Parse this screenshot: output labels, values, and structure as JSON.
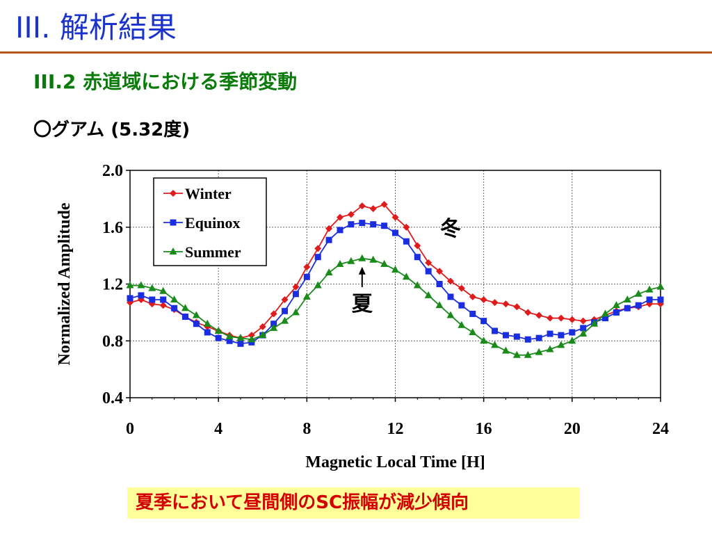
{
  "slide": {
    "title": "III. 解析結果",
    "subtitle": "III.2 赤道域における季節変動",
    "station": "〇グアム (5.32度)",
    "conclusion": "夏季において昼間側のSC振幅が減少傾向"
  },
  "chart_data": {
    "type": "line",
    "title": "",
    "xlabel": "Magnetic Local Time [H]",
    "ylabel": "Normalized Amplitude",
    "xlim": [
      0,
      24
    ],
    "ylim": [
      0.4,
      2.0
    ],
    "xticks": [
      "0",
      "4",
      "8",
      "12",
      "16",
      "20",
      "24"
    ],
    "yticks": [
      "0.4",
      "0.8",
      "1.2",
      "1.6",
      "2.0"
    ],
    "grid": true,
    "legend_position": "top-left",
    "x": [
      0,
      0.5,
      1,
      1.5,
      2,
      2.5,
      3,
      3.5,
      4,
      4.5,
      5,
      5.5,
      6,
      6.5,
      7,
      7.5,
      8,
      8.5,
      9,
      9.5,
      10,
      10.5,
      11,
      11.5,
      12,
      12.5,
      13,
      13.5,
      14,
      14.5,
      15,
      15.5,
      16,
      16.5,
      17,
      17.5,
      18,
      18.5,
      19,
      19.5,
      20,
      20.5,
      21,
      21.5,
      22,
      22.5,
      23,
      23.5,
      24
    ],
    "series": [
      {
        "name": "Winter",
        "color": "#e01b1b",
        "marker": "diamond",
        "values": [
          1.07,
          1.09,
          1.06,
          1.05,
          1.02,
          0.97,
          0.93,
          0.9,
          0.87,
          0.84,
          0.82,
          0.84,
          0.9,
          0.99,
          1.09,
          1.18,
          1.32,
          1.45,
          1.59,
          1.67,
          1.69,
          1.75,
          1.73,
          1.76,
          1.67,
          1.6,
          1.47,
          1.35,
          1.29,
          1.22,
          1.17,
          1.11,
          1.09,
          1.07,
          1.06,
          1.04,
          1.0,
          0.98,
          0.96,
          0.96,
          0.95,
          0.94,
          0.95,
          0.98,
          1.01,
          1.03,
          1.04,
          1.06,
          1.06
        ]
      },
      {
        "name": "Equinox",
        "color": "#1a2ee0",
        "marker": "square",
        "values": [
          1.1,
          1.12,
          1.09,
          1.09,
          1.03,
          0.97,
          0.92,
          0.86,
          0.82,
          0.8,
          0.78,
          0.79,
          0.84,
          0.92,
          1.01,
          1.13,
          1.25,
          1.39,
          1.51,
          1.58,
          1.62,
          1.63,
          1.62,
          1.61,
          1.56,
          1.5,
          1.39,
          1.29,
          1.2,
          1.11,
          1.05,
          0.99,
          0.94,
          0.87,
          0.84,
          0.83,
          0.81,
          0.82,
          0.85,
          0.84,
          0.86,
          0.89,
          0.93,
          0.96,
          1.0,
          1.03,
          1.05,
          1.09,
          1.09
        ]
      },
      {
        "name": "Summer",
        "color": "#1a8a1a",
        "marker": "triangle",
        "values": [
          1.19,
          1.19,
          1.17,
          1.15,
          1.09,
          1.03,
          0.98,
          0.92,
          0.87,
          0.83,
          0.82,
          0.81,
          0.84,
          0.89,
          0.94,
          1.0,
          1.11,
          1.19,
          1.28,
          1.34,
          1.36,
          1.38,
          1.37,
          1.34,
          1.3,
          1.25,
          1.19,
          1.12,
          1.05,
          0.98,
          0.91,
          0.86,
          0.8,
          0.77,
          0.73,
          0.7,
          0.7,
          0.72,
          0.74,
          0.77,
          0.8,
          0.85,
          0.92,
          0.99,
          1.05,
          1.09,
          1.13,
          1.16,
          1.18
        ]
      }
    ],
    "annotations": [
      {
        "text": "冬",
        "x": 14.5,
        "y": 1.6
      },
      {
        "text": "夏",
        "x": 10.5,
        "y": 1.07,
        "arrow_to": [
          10.5,
          1.38
        ]
      }
    ]
  }
}
